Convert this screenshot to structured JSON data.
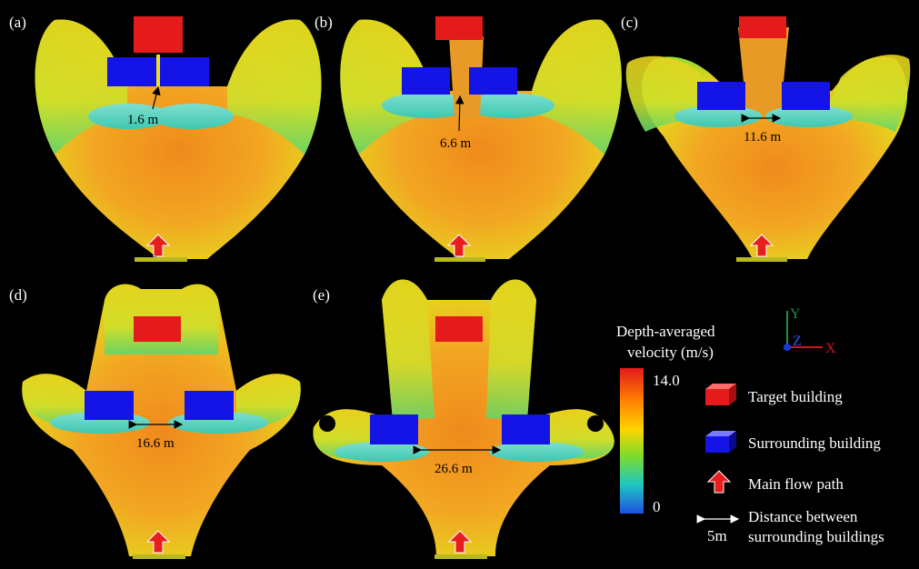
{
  "panels": [
    {
      "label": "(a)",
      "gap_text": "1.6 m"
    },
    {
      "label": "(b)",
      "gap_text": "6.6 m"
    },
    {
      "label": "(c)",
      "gap_text": "11.6 m"
    },
    {
      "label": "(d)",
      "gap_text": "16.6 m"
    },
    {
      "label": "(e)",
      "gap_text": "26.6 m"
    }
  ],
  "colorbar": {
    "title_line1": "Depth-averaged",
    "title_line2": "velocity (m/s)",
    "max_label": "14.0",
    "min_label": "0",
    "stops": [
      "#e31a1c",
      "#ff7f00",
      "#ffd400",
      "#7fdc2a",
      "#1fc7c0",
      "#1f50e0"
    ]
  },
  "axes": {
    "y": "Y",
    "z": "Z",
    "x": "X"
  },
  "legend": {
    "target": "Target building",
    "surrounding": "Surrounding building",
    "flow": "Main flow path",
    "distance_line1": "Distance between",
    "distance_line2": "surrounding buildings",
    "scale": "5m"
  },
  "colors": {
    "target": "#e51b1b",
    "surrounding": "#1414e6",
    "flow_arrow": "#e81e1e"
  }
}
